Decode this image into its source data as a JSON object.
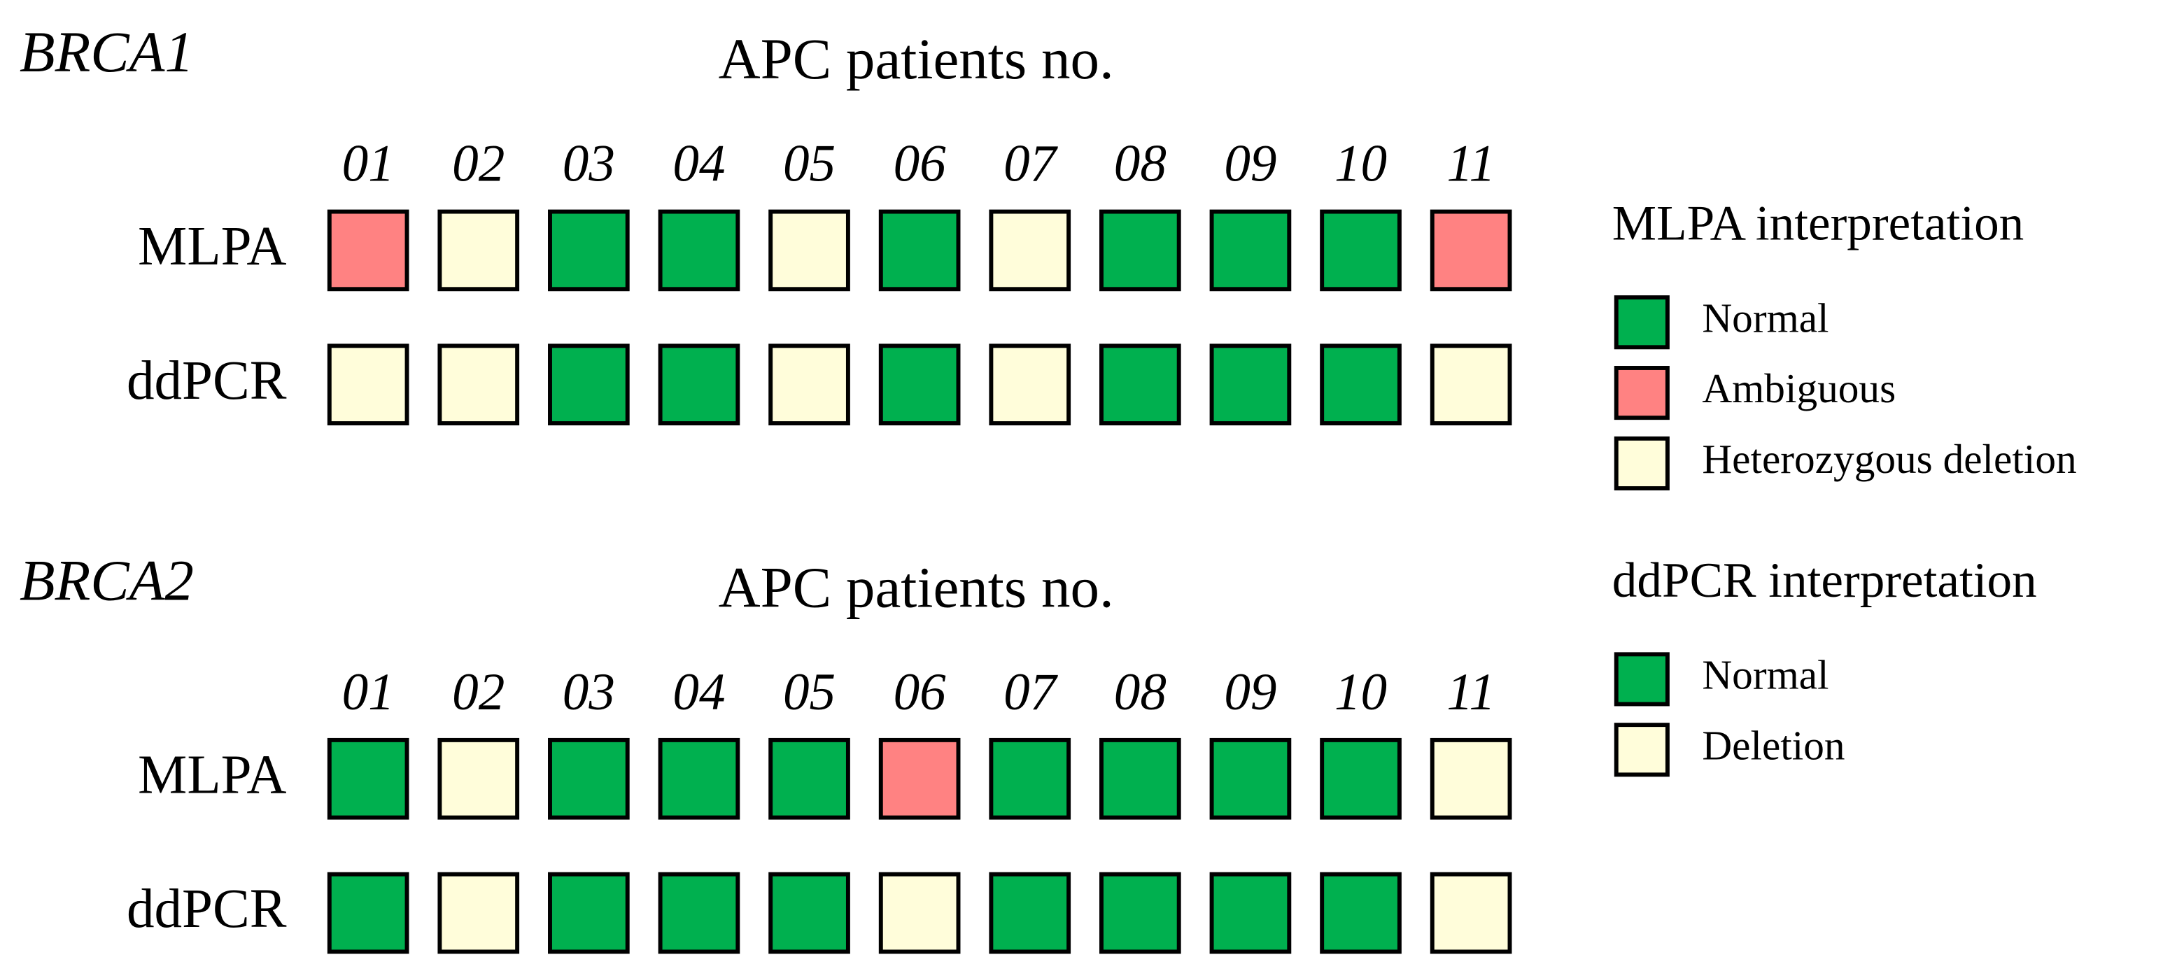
{
  "panels": [
    {
      "gene": "BRCA1",
      "header": "APC patients no.",
      "patients": [
        "01",
        "02",
        "03",
        "04",
        "05",
        "06",
        "07",
        "08",
        "09",
        "10",
        "11"
      ],
      "rows": [
        {
          "label": "MLPA",
          "cells": [
            "Ambiguous",
            "Heterozygous deletion",
            "Normal",
            "Normal",
            "Heterozygous deletion",
            "Normal",
            "Heterozygous deletion",
            "Normal",
            "Normal",
            "Normal",
            "Ambiguous"
          ]
        },
        {
          "label": "ddPCR",
          "cells": [
            "Deletion",
            "Deletion",
            "Normal",
            "Normal",
            "Deletion",
            "Normal",
            "Deletion",
            "Normal",
            "Normal",
            "Normal",
            "Deletion"
          ]
        }
      ]
    },
    {
      "gene": "BRCA2",
      "header": "APC patients no.",
      "patients": [
        "01",
        "02",
        "03",
        "04",
        "05",
        "06",
        "07",
        "08",
        "09",
        "10",
        "11"
      ],
      "rows": [
        {
          "label": "MLPA",
          "cells": [
            "Normal",
            "Heterozygous deletion",
            "Normal",
            "Normal",
            "Normal",
            "Ambiguous",
            "Normal",
            "Normal",
            "Normal",
            "Normal",
            "Heterozygous deletion"
          ]
        },
        {
          "label": "ddPCR",
          "cells": [
            "Normal",
            "Deletion",
            "Normal",
            "Normal",
            "Normal",
            "Deletion",
            "Normal",
            "Normal",
            "Normal",
            "Normal",
            "Deletion"
          ]
        }
      ]
    }
  ],
  "legends": [
    {
      "title": "MLPA interpretation",
      "items": [
        {
          "label": "Normal",
          "color": "#00b04f"
        },
        {
          "label": "Ambiguous",
          "color": "#ff8282"
        },
        {
          "label": "Heterozygous deletion",
          "color": "#fffdda"
        }
      ]
    },
    {
      "title": "ddPCR interpretation",
      "items": [
        {
          "label": "Normal",
          "color": "#00b04f"
        },
        {
          "label": "Deletion",
          "color": "#fffdda"
        }
      ]
    }
  ]
}
